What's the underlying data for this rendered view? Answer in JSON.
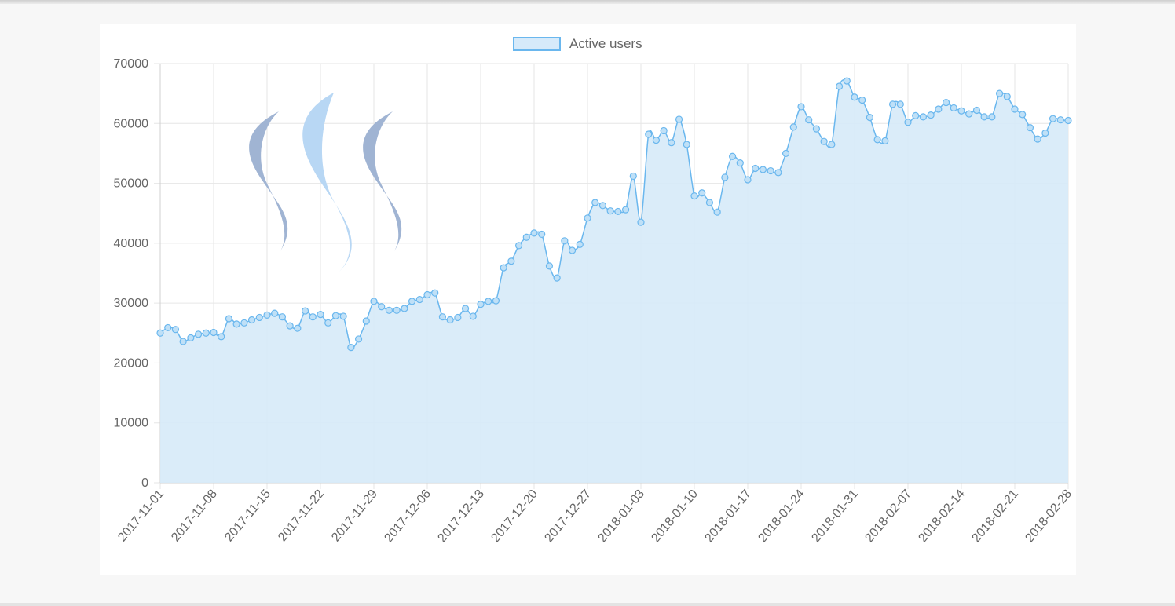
{
  "chart_data": {
    "type": "area",
    "legend": {
      "label": "Active users",
      "position": "top"
    },
    "ylim": [
      0,
      70000
    ],
    "yticks": [
      0,
      10000,
      20000,
      30000,
      40000,
      50000,
      60000,
      70000
    ],
    "xtick_labels": [
      "2017-11-01",
      "2017-11-08",
      "2017-11-15",
      "2017-11-22",
      "2017-11-29",
      "2017-12-06",
      "2017-12-13",
      "2017-12-20",
      "2017-12-27",
      "2018-01-03",
      "2018-01-10",
      "2018-01-17",
      "2018-01-24",
      "2018-01-31",
      "2018-02-07",
      "2018-02-14",
      "2018-02-21",
      "2018-02-28"
    ],
    "grid": true,
    "colors": {
      "line": "#6ab7ee",
      "fill": "#d6eaf8",
      "point_fill": "#bfe0f7",
      "grid": "#e6e6e6"
    },
    "series": [
      {
        "name": "Active users",
        "x_start": "2017-11-01",
        "x_end": "2018-02-28",
        "values": [
          25000,
          25900,
          25600,
          23600,
          24200,
          24800,
          25000,
          25100,
          24400,
          27400,
          26500,
          26700,
          27200,
          27600,
          28000,
          28300,
          27700,
          26200,
          25800,
          28700,
          27700,
          28100,
          26700,
          27900,
          27800,
          22600,
          24000,
          27000,
          30300,
          29400,
          28800,
          28800,
          29100,
          30300,
          30600,
          31400,
          31700,
          27700,
          27200,
          27600,
          29100,
          27800,
          29800,
          30300,
          30400,
          35900,
          37000,
          39600,
          41000,
          41700,
          41500,
          36200,
          34200,
          40400,
          38800,
          39800,
          44200,
          46800,
          46300,
          45400,
          45300,
          45600,
          51200,
          43500,
          58200,
          57200,
          58800,
          56800,
          60700,
          56500,
          47900,
          48400,
          46800,
          45200,
          51000,
          54500,
          53400,
          50600,
          52500,
          52300,
          52100,
          51800,
          55000,
          59400,
          62800,
          60600,
          59100,
          57000,
          56500,
          66200,
          67100,
          64400,
          63900,
          61000,
          57300,
          57100,
          63200,
          63200,
          60200,
          61300,
          61100,
          61400,
          62400,
          63500,
          62600,
          62100,
          61600,
          62200,
          61100,
          61100,
          65000,
          64500,
          62400,
          61500,
          59300,
          57400,
          58400,
          60800,
          60600,
          60500
        ]
      }
    ]
  },
  "logo": {
    "name": "steem-logo"
  }
}
